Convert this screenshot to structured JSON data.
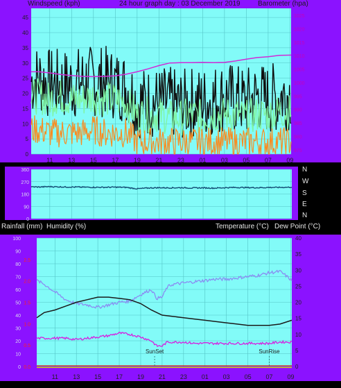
{
  "colors": {
    "frame": "#8b12ff",
    "plot_bg": "#82fbf8",
    "grid": "#54c4c6",
    "axis_text": "#1e1e1e",
    "title_text": "#1e1e1e",
    "bottom_panel_bg": "#000000",
    "bottom_label_text": "#e6e6e6",
    "left_tick_text": "#d8d8ee",
    "red_tick_text": "#ff2020",
    "baro_tick_text": "#c000c0"
  },
  "header": {
    "left": "Windspeed (kph)",
    "center": "24 hour graph day : 03 December 2019",
    "right": "Barometer (hpa)"
  },
  "bottom_header": {
    "rain": "Rainfall (mm)",
    "humidity": "Humidity (%)",
    "temp": "Temperature (°C)",
    "dew": "Dew Point (°C)"
  },
  "compass_labels": [
    "N",
    "W",
    "S",
    "E",
    "N"
  ],
  "time_ticks": [
    "11",
    "13",
    "15",
    "17",
    "19",
    "21",
    "23",
    "01",
    "03",
    "05",
    "07",
    "09"
  ],
  "events": {
    "sunset": "SunSet",
    "sunrise": "SunRise"
  },
  "chart_data": [
    {
      "id": "wind",
      "type": "line",
      "x_range": [
        9.3,
        33.1
      ],
      "x_ticks": [
        "11",
        "13",
        "15",
        "17",
        "19",
        "21",
        "23",
        "01",
        "03",
        "05",
        "07",
        "09"
      ],
      "left_axis": {
        "label": "Windspeed (kph)",
        "ticks": [
          "0",
          "5",
          "10",
          "15",
          "20",
          "25",
          "30",
          "35",
          "40",
          "45"
        ],
        "range": [
          0,
          48
        ]
      },
      "right_axis": {
        "label": "Barometer (hpa)",
        "ticks": [
          "975",
          "980",
          "985",
          "990",
          "995",
          "1000",
          "1005",
          "1010",
          "1015",
          "1020",
          "1025"
        ],
        "range": [
          973.4,
          1027.6
        ]
      },
      "series": [
        {
          "color": "#0e0e0e",
          "axis": "left",
          "x": [
            9.3,
            10.0,
            11.0,
            12.0,
            13.0,
            14.0,
            15.0,
            16.0,
            17.0,
            18.0,
            19.0,
            20.0,
            21.0,
            22.0,
            23.0,
            24.0,
            25.0,
            26.0,
            27.0,
            28.0,
            29.0,
            30.0,
            31.0,
            32.0,
            33.1
          ],
          "y": [
            24,
            25,
            23,
            23,
            23,
            24,
            24,
            24,
            23,
            22,
            17,
            17,
            17,
            17,
            16,
            17,
            17,
            18,
            19,
            18,
            17,
            19,
            18,
            19,
            20
          ]
        },
        {
          "color": "#7ff4a2",
          "axis": "left",
          "x": [
            9.3,
            10.0,
            11.0,
            12.0,
            13.0,
            14.0,
            15.0,
            16.0,
            17.0,
            18.0,
            19.0,
            20.0,
            21.0,
            22.0,
            23.0,
            24.0,
            25.0,
            26.0,
            27.0,
            28.0,
            29.0,
            30.0,
            31.0,
            32.0,
            33.1
          ],
          "y": [
            19,
            19,
            18,
            19,
            18,
            18,
            19,
            18,
            18,
            17,
            13,
            13,
            13,
            12,
            12,
            13,
            12,
            13,
            13,
            13,
            12,
            13,
            13,
            14,
            14
          ]
        },
        {
          "color": "#f88c22",
          "axis": "left",
          "x": [
            9.3,
            10.0,
            11.0,
            12.0,
            13.0,
            14.0,
            15.0,
            16.0,
            17.0,
            18.0,
            19.0,
            20.0,
            21.0,
            22.0,
            23.0,
            24.0,
            25.0,
            26.0,
            27.0,
            28.0,
            29.0,
            30.0,
            31.0,
            32.0,
            33.1
          ],
          "y": [
            8,
            8,
            7,
            7,
            7,
            7,
            8,
            7,
            7,
            7,
            4,
            4,
            4,
            4,
            4,
            4,
            4,
            4,
            4,
            4,
            4,
            4,
            4,
            4,
            4
          ]
        },
        {
          "color": "#d02ad6",
          "axis": "right",
          "x": [
            9.3,
            10.0,
            11.0,
            12.0,
            13.0,
            14.0,
            15.0,
            16.0,
            17.0,
            18.0,
            19.0,
            20.0,
            21.0,
            22.0,
            23.0,
            24.0,
            25.0,
            26.0,
            27.0,
            28.0,
            29.0,
            30.0,
            31.0,
            32.0,
            33.1
          ],
          "y": [
            1004.0,
            1004.0,
            1003.6,
            1003.0,
            1002.6,
            1002.3,
            1002.2,
            1002.3,
            1002.5,
            1003.1,
            1004.0,
            1005.1,
            1006.3,
            1007.3,
            1007.4,
            1007.4,
            1007.5,
            1007.4,
            1007.5,
            1008.0,
            1008.7,
            1009.3,
            1009.6,
            1010.1,
            1010.2
          ]
        }
      ]
    },
    {
      "id": "direction",
      "type": "line",
      "x_range": [
        9.3,
        33.1
      ],
      "y_ticks": [
        "360",
        "270",
        "180",
        "90",
        "0"
      ],
      "y_range": [
        0,
        360
      ],
      "right_labels": [
        "N",
        "W",
        "S",
        "E",
        "N"
      ],
      "series": [
        {
          "color": "#134a72",
          "x": [
            9.3,
            10.0,
            11.0,
            12.0,
            13.0,
            14.0,
            15.0,
            16.0,
            17.0,
            18.0,
            19.0,
            20.0,
            21.0,
            22.0,
            23.0,
            24.0,
            25.0,
            26.0,
            27.0,
            28.0,
            29.0,
            30.0,
            31.0,
            32.0,
            33.1
          ],
          "y": [
            232,
            231,
            234,
            232,
            231,
            230,
            229,
            229,
            230,
            228,
            218,
            224,
            226,
            225,
            226,
            224,
            225,
            223,
            226,
            228,
            227,
            226,
            228,
            228,
            230
          ]
        }
      ]
    },
    {
      "id": "temperature",
      "type": "line",
      "x_range": [
        9.3,
        33.1
      ],
      "left_axis": {
        "label": "Humidity (%)",
        "ticks": [
          "0",
          "10",
          "20",
          "30",
          "40",
          "50",
          "60",
          "70",
          "80",
          "90",
          "100"
        ],
        "range": [
          0,
          100
        ]
      },
      "left_red_axis": {
        "label": "Rainfall (mm)",
        "ticks": [
          "0.0",
          "0.5",
          "1.0",
          "1.5",
          "2.0",
          "2.5"
        ],
        "range": [
          0,
          3.0
        ]
      },
      "right_axis": {
        "label": "Temperature (°C)",
        "ticks": [
          "0",
          "5",
          "10",
          "15",
          "20",
          "25",
          "30",
          "35",
          "40"
        ],
        "range": [
          0,
          40
        ]
      },
      "events": [
        {
          "label": "SunSet",
          "x": 20.3
        },
        {
          "label": "SunRise",
          "x": 31.0
        }
      ],
      "series": [
        {
          "color": "#8a8cf2",
          "axis": "left",
          "x": [
            9.3,
            10.0,
            11.0,
            12.0,
            13.0,
            14.0,
            15.0,
            16.0,
            17.0,
            18.0,
            19.0,
            20.0,
            20.5,
            21.0,
            21.5,
            22.0,
            23.0,
            24.0,
            25.0,
            26.0,
            27.0,
            28.0,
            29.0,
            30.0,
            31.0,
            32.0,
            32.5,
            33.1
          ],
          "y": [
            67,
            64,
            58,
            52,
            49,
            48,
            46,
            48,
            50,
            51,
            56,
            60,
            53,
            54,
            62,
            64,
            65,
            66,
            67,
            68,
            68,
            69,
            70,
            71,
            73,
            74,
            71,
            67
          ]
        },
        {
          "color": "#1a1a1a",
          "axis": "left",
          "x": [
            9.3,
            10.0,
            11.0,
            12.0,
            13.0,
            14.0,
            15.0,
            16.0,
            17.0,
            18.0,
            19.0,
            20.0,
            21.0,
            22.0,
            23.0,
            24.0,
            25.0,
            26.0,
            27.0,
            28.0,
            29.0,
            30.0,
            31.0,
            32.0,
            33.1
          ],
          "y": [
            38,
            42,
            44,
            47,
            50,
            52,
            54,
            54,
            53,
            52,
            49,
            44,
            40,
            39,
            38,
            37,
            36,
            35,
            34,
            33,
            32,
            32,
            32,
            33,
            36
          ]
        },
        {
          "color": "#d61fe0",
          "axis": "left",
          "x": [
            9.3,
            10.0,
            11.0,
            12.0,
            13.0,
            14.0,
            15.0,
            16.0,
            17.0,
            18.0,
            19.0,
            20.0,
            20.5,
            21.0,
            21.5,
            22.0,
            23.0,
            24.0,
            25.0,
            26.0,
            27.0,
            28.0,
            29.0,
            30.0,
            31.0,
            32.0,
            33.1
          ],
          "y": [
            22,
            22,
            22,
            22,
            21,
            22,
            23,
            24,
            26,
            25,
            23,
            20,
            16,
            16,
            19,
            19,
            19,
            18,
            18,
            18,
            18,
            18,
            18,
            18,
            18,
            19,
            19
          ]
        }
      ]
    }
  ]
}
